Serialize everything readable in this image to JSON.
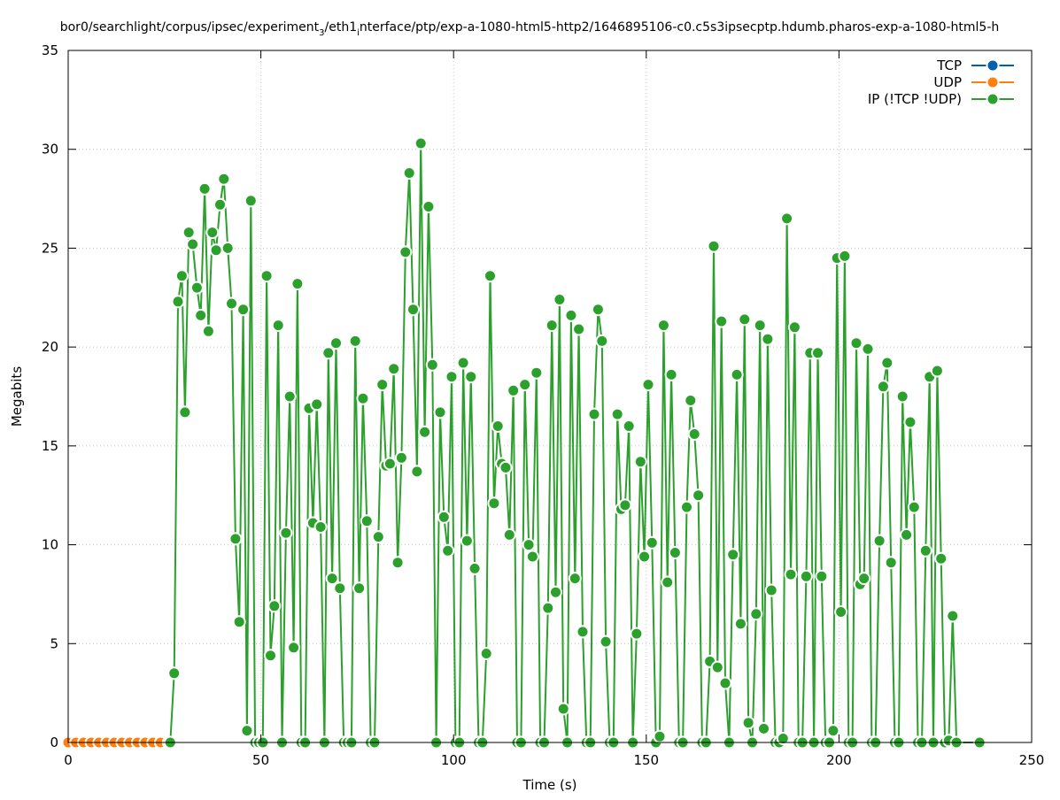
{
  "chart_data": {
    "type": "line",
    "title_main": "bor0/searchlight/corpus/ipsec/experiment",
    "title_sub1": "3",
    "title_mid": "/eth1",
    "title_sub2": "i",
    "title_tail": "nterface/ptp/exp-a-1080-html5-http2/1646895106-c0.c5s3ipsecptp.hdumb.pharos-exp-a-1080-html5-h",
    "xlabel": "Time (s)",
    "ylabel": "Megabits",
    "xlim": [
      0,
      250
    ],
    "ylim": [
      0,
      35
    ],
    "x_ticks": [
      "0",
      "50",
      "100",
      "150",
      "200",
      "250"
    ],
    "y_ticks": [
      "0",
      "5",
      "10",
      "15",
      "20",
      "25",
      "30",
      "35"
    ],
    "grid": true,
    "legend_position": "top-right",
    "series": [
      {
        "name": "TCP",
        "color": "#0060ad",
        "points": [
          [
            0,
            0
          ],
          [
            2,
            0
          ],
          [
            4,
            0
          ],
          [
            6,
            0
          ],
          [
            8,
            0
          ],
          [
            10,
            0
          ],
          [
            12,
            0
          ],
          [
            14,
            0
          ],
          [
            16,
            0
          ],
          [
            18,
            0
          ],
          [
            20,
            0
          ],
          [
            22,
            0
          ],
          [
            24,
            0
          ],
          [
            26,
            0
          ]
        ]
      },
      {
        "name": "UDP",
        "color": "#ff7f0e",
        "points": [
          [
            0,
            0
          ],
          [
            2,
            0
          ],
          [
            4,
            0
          ],
          [
            6,
            0
          ],
          [
            8,
            0
          ],
          [
            10,
            0
          ],
          [
            12,
            0
          ],
          [
            14,
            0
          ],
          [
            16,
            0
          ],
          [
            18,
            0
          ],
          [
            20,
            0
          ],
          [
            22,
            0
          ],
          [
            24,
            0
          ],
          [
            26,
            0
          ]
        ]
      },
      {
        "name": "IP (!TCP  !UDP)",
        "color": "#2ca02c",
        "points": [
          [
            26.5,
            0
          ],
          [
            27.5,
            3.5
          ],
          [
            28.5,
            22.3
          ],
          [
            29.5,
            23.6
          ],
          [
            30.3,
            16.7
          ],
          [
            31.3,
            25.8
          ],
          [
            32.3,
            25.2
          ],
          [
            33.4,
            23.0
          ],
          [
            34.4,
            21.6
          ],
          [
            35.4,
            28.0
          ],
          [
            36.4,
            20.8
          ],
          [
            37.4,
            25.8
          ],
          [
            38.4,
            24.9
          ],
          [
            39.4,
            27.2
          ],
          [
            40.4,
            28.5
          ],
          [
            41.4,
            25.0
          ],
          [
            42.4,
            22.2
          ],
          [
            43.4,
            10.3
          ],
          [
            44.4,
            6.1
          ],
          [
            45.4,
            21.9
          ],
          [
            46.4,
            0.6
          ],
          [
            47.4,
            27.4
          ],
          [
            48.5,
            0.0
          ],
          [
            49.5,
            0.0
          ],
          [
            50.5,
            0.0
          ],
          [
            51.5,
            23.6
          ],
          [
            52.5,
            4.4
          ],
          [
            53.5,
            6.9
          ],
          [
            54.5,
            21.1
          ],
          [
            55.5,
            0.0
          ],
          [
            56.5,
            10.6
          ],
          [
            57.5,
            17.5
          ],
          [
            58.5,
            4.8
          ],
          [
            59.5,
            23.2
          ],
          [
            60.5,
            0.0
          ],
          [
            61.5,
            0.0
          ],
          [
            62.5,
            16.9
          ],
          [
            63.5,
            11.1
          ],
          [
            64.5,
            17.1
          ],
          [
            65.5,
            10.9
          ],
          [
            66.5,
            0.0
          ],
          [
            67.5,
            19.7
          ],
          [
            68.5,
            8.3
          ],
          [
            69.5,
            20.2
          ],
          [
            70.5,
            7.8
          ],
          [
            71.5,
            0.0
          ],
          [
            72.5,
            0.0
          ],
          [
            73.5,
            0.0
          ],
          [
            74.5,
            20.3
          ],
          [
            75.5,
            7.8
          ],
          [
            76.5,
            17.4
          ],
          [
            77.5,
            11.2
          ],
          [
            78.5,
            0.0
          ],
          [
            79.5,
            0.0
          ],
          [
            80.5,
            10.4
          ],
          [
            81.5,
            18.1
          ],
          [
            82.5,
            14.0
          ],
          [
            83.5,
            14.1
          ],
          [
            84.5,
            18.9
          ],
          [
            85.5,
            9.1
          ],
          [
            86.5,
            14.4
          ],
          [
            87.5,
            24.8
          ],
          [
            88.5,
            28.8
          ],
          [
            89.5,
            21.9
          ],
          [
            90.5,
            13.7
          ],
          [
            91.5,
            30.3
          ],
          [
            92.5,
            15.7
          ],
          [
            93.5,
            27.1
          ],
          [
            94.5,
            19.1
          ],
          [
            95.5,
            0.0
          ],
          [
            96.5,
            16.7
          ],
          [
            97.5,
            11.4
          ],
          [
            98.5,
            9.7
          ],
          [
            99.5,
            18.5
          ],
          [
            100.5,
            0.0
          ],
          [
            101.5,
            0.0
          ],
          [
            102.5,
            19.2
          ],
          [
            103.5,
            10.2
          ],
          [
            104.5,
            18.5
          ],
          [
            105.5,
            8.8
          ],
          [
            106.5,
            0.0
          ],
          [
            107.5,
            0.0
          ],
          [
            108.5,
            4.5
          ],
          [
            109.5,
            23.6
          ],
          [
            110.5,
            12.1
          ],
          [
            111.5,
            16.0
          ],
          [
            112.5,
            14.1
          ],
          [
            113.5,
            13.9
          ],
          [
            114.5,
            10.5
          ],
          [
            115.5,
            17.8
          ],
          [
            116.5,
            0.0
          ],
          [
            117.5,
            0.0
          ],
          [
            118.5,
            18.1
          ],
          [
            119.5,
            10.0
          ],
          [
            120.5,
            9.4
          ],
          [
            121.5,
            18.7
          ],
          [
            122.5,
            0.0
          ],
          [
            123.5,
            0.0
          ],
          [
            124.5,
            6.8
          ],
          [
            125.5,
            21.1
          ],
          [
            126.5,
            7.6
          ],
          [
            127.5,
            22.4
          ],
          [
            128.5,
            1.7
          ],
          [
            129.5,
            0.0
          ],
          [
            130.5,
            21.6
          ],
          [
            131.5,
            8.3
          ],
          [
            132.5,
            20.9
          ],
          [
            133.5,
            5.6
          ],
          [
            134.5,
            0.0
          ],
          [
            135.5,
            0.0
          ],
          [
            136.5,
            16.6
          ],
          [
            137.5,
            21.9
          ],
          [
            138.5,
            20.3
          ],
          [
            139.5,
            5.1
          ],
          [
            140.5,
            0.0
          ],
          [
            141.5,
            0.0
          ],
          [
            142.5,
            16.6
          ],
          [
            143.5,
            11.8
          ],
          [
            144.5,
            12.0
          ],
          [
            145.5,
            16.0
          ],
          [
            146.5,
            0.0
          ],
          [
            147.5,
            5.5
          ],
          [
            148.5,
            14.2
          ],
          [
            149.5,
            9.4
          ],
          [
            150.5,
            18.1
          ],
          [
            151.5,
            10.1
          ],
          [
            152.5,
            0.0
          ],
          [
            153.5,
            0.3
          ],
          [
            154.5,
            21.1
          ],
          [
            155.5,
            8.1
          ],
          [
            156.5,
            18.6
          ],
          [
            157.5,
            9.6
          ],
          [
            158.5,
            0.0
          ],
          [
            159.5,
            0.0
          ],
          [
            160.5,
            11.9
          ],
          [
            161.5,
            17.3
          ],
          [
            162.5,
            15.6
          ],
          [
            163.5,
            12.5
          ],
          [
            164.5,
            0.0
          ],
          [
            165.5,
            0.0
          ],
          [
            166.5,
            4.1
          ],
          [
            167.5,
            25.1
          ],
          [
            168.5,
            3.8
          ],
          [
            169.5,
            21.3
          ],
          [
            170.5,
            3.0
          ],
          [
            171.5,
            0.0
          ],
          [
            172.5,
            9.5
          ],
          [
            173.5,
            18.6
          ],
          [
            174.5,
            6.0
          ],
          [
            175.5,
            21.4
          ],
          [
            176.5,
            1.0
          ],
          [
            177.5,
            0.0
          ],
          [
            178.5,
            6.5
          ],
          [
            179.5,
            21.1
          ],
          [
            180.5,
            0.7
          ],
          [
            181.5,
            20.4
          ],
          [
            182.5,
            7.7
          ],
          [
            183.5,
            0.0
          ],
          [
            184.5,
            0.0
          ],
          [
            185.5,
            0.2
          ],
          [
            186.5,
            26.5
          ],
          [
            187.5,
            8.5
          ],
          [
            188.5,
            21.0
          ],
          [
            189.5,
            0.0
          ],
          [
            190.5,
            0.0
          ],
          [
            191.5,
            8.4
          ],
          [
            192.5,
            19.7
          ],
          [
            193.5,
            0.0
          ],
          [
            194.5,
            19.7
          ],
          [
            195.5,
            8.4
          ],
          [
            196.5,
            0.0
          ],
          [
            197.5,
            0.0
          ],
          [
            198.5,
            0.6
          ],
          [
            199.5,
            24.5
          ],
          [
            200.5,
            6.6
          ],
          [
            201.5,
            24.6
          ],
          [
            202.5,
            0.0
          ],
          [
            203.5,
            0.0
          ],
          [
            204.5,
            20.2
          ],
          [
            205.5,
            8.0
          ],
          [
            206.5,
            8.3
          ],
          [
            207.5,
            19.9
          ],
          [
            208.5,
            0.0
          ],
          [
            209.5,
            0.0
          ],
          [
            210.5,
            10.2
          ],
          [
            211.5,
            18.0
          ],
          [
            212.5,
            19.2
          ],
          [
            213.5,
            9.1
          ],
          [
            214.5,
            0.0
          ],
          [
            215.5,
            0.0
          ],
          [
            216.5,
            17.5
          ],
          [
            217.5,
            10.5
          ],
          [
            218.5,
            16.2
          ],
          [
            219.5,
            11.9
          ],
          [
            220.5,
            0.0
          ],
          [
            221.5,
            0.0
          ],
          [
            222.5,
            9.7
          ],
          [
            223.5,
            18.5
          ],
          [
            224.5,
            0.0
          ],
          [
            225.5,
            18.8
          ],
          [
            226.5,
            9.3
          ],
          [
            227.5,
            0.0
          ],
          [
            228.5,
            0.1
          ],
          [
            229.5,
            6.4
          ],
          [
            230.5,
            0.0
          ],
          [
            236.5,
            0.0
          ]
        ]
      }
    ]
  }
}
